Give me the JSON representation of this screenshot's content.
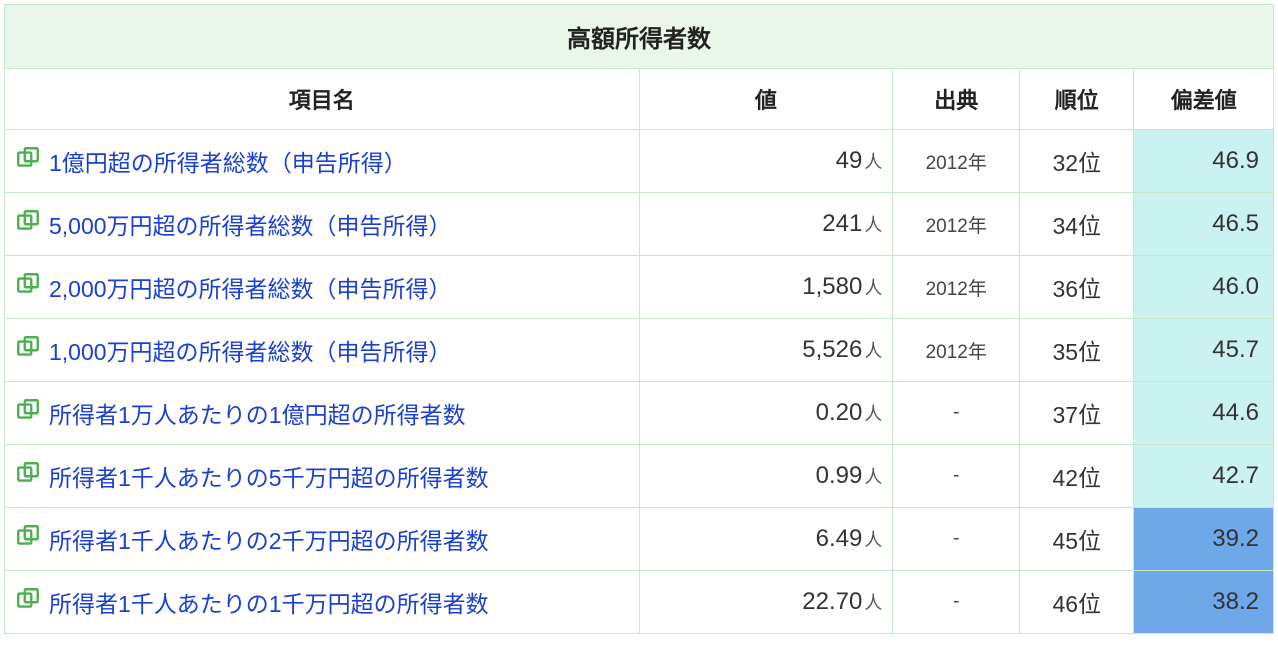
{
  "table": {
    "title": "高額所得者数",
    "columns": {
      "name": "項目名",
      "value": "値",
      "source": "出典",
      "rank": "順位",
      "deviation": "偏差値"
    },
    "value_unit": "人",
    "colors": {
      "border": "#c8e6c9",
      "title_bg": "#eaf6ea",
      "link": "#1a3fd1",
      "icon": "#4caf50",
      "dev_light": "#c9f2f0",
      "dev_dark": "#6ea8e8"
    },
    "rows": [
      {
        "label": "1億円超の所得者総数（申告所得）",
        "value": "49",
        "source": "2012年",
        "rank": "32位",
        "deviation": "46.9",
        "dev_bg": "#c9f2f0"
      },
      {
        "label": "5,000万円超の所得者総数（申告所得）",
        "value": "241",
        "source": "2012年",
        "rank": "34位",
        "deviation": "46.5",
        "dev_bg": "#c9f2f0"
      },
      {
        "label": "2,000万円超の所得者総数（申告所得）",
        "value": "1,580",
        "source": "2012年",
        "rank": "36位",
        "deviation": "46.0",
        "dev_bg": "#c9f2f0"
      },
      {
        "label": "1,000万円超の所得者総数（申告所得）",
        "value": "5,526",
        "source": "2012年",
        "rank": "35位",
        "deviation": "45.7",
        "dev_bg": "#c9f2f0"
      },
      {
        "label": "所得者1万人あたりの1億円超の所得者数",
        "value": "0.20",
        "source": "-",
        "rank": "37位",
        "deviation": "44.6",
        "dev_bg": "#c9f2f0"
      },
      {
        "label": "所得者1千人あたりの5千万円超の所得者数",
        "value": "0.99",
        "source": "-",
        "rank": "42位",
        "deviation": "42.7",
        "dev_bg": "#c9f2f0"
      },
      {
        "label": "所得者1千人あたりの2千万円超の所得者数",
        "value": "6.49",
        "source": "-",
        "rank": "45位",
        "deviation": "39.2",
        "dev_bg": "#6ea8e8"
      },
      {
        "label": "所得者1千人あたりの1千万円超の所得者数",
        "value": "22.70",
        "source": "-",
        "rank": "46位",
        "deviation": "38.2",
        "dev_bg": "#6ea8e8"
      }
    ]
  }
}
